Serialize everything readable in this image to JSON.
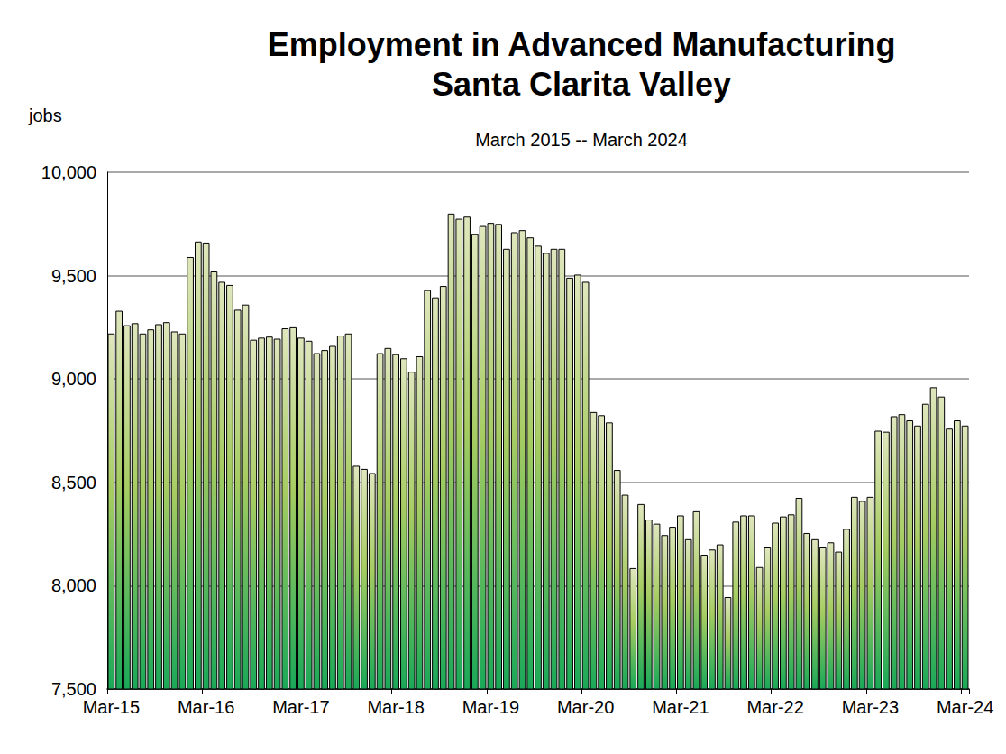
{
  "chart_data": {
    "type": "bar",
    "title": "Employment in Advanced Manufacturing\nSanta Clarita Valley",
    "subtitle": "March 2015 -- March 2024",
    "y_label": "jobs",
    "categories": [
      "Mar-15",
      null,
      null,
      null,
      null,
      null,
      null,
      null,
      null,
      null,
      null,
      null,
      "Mar-16",
      null,
      null,
      null,
      null,
      null,
      null,
      null,
      null,
      null,
      null,
      null,
      "Mar-17",
      null,
      null,
      null,
      null,
      null,
      null,
      null,
      null,
      null,
      null,
      null,
      "Mar-18",
      null,
      null,
      null,
      null,
      null,
      null,
      null,
      null,
      null,
      null,
      null,
      "Mar-19",
      null,
      null,
      null,
      null,
      null,
      null,
      null,
      null,
      null,
      null,
      null,
      "Mar-20",
      null,
      null,
      null,
      null,
      null,
      null,
      null,
      null,
      null,
      null,
      null,
      "Mar-21",
      null,
      null,
      null,
      null,
      null,
      null,
      null,
      null,
      null,
      null,
      null,
      "Mar-22",
      null,
      null,
      null,
      null,
      null,
      null,
      null,
      null,
      null,
      null,
      null,
      "Mar-23",
      null,
      null,
      null,
      null,
      null,
      null,
      null,
      null,
      null,
      null,
      null,
      "Mar-24"
    ],
    "values": [
      9220,
      9330,
      9260,
      9270,
      9220,
      9240,
      9265,
      9275,
      9230,
      9220,
      9590,
      9665,
      9660,
      9520,
      9470,
      9455,
      9335,
      9360,
      9190,
      9200,
      9205,
      9195,
      9245,
      9250,
      9200,
      9185,
      9125,
      9140,
      9160,
      9210,
      9220,
      8580,
      8565,
      8545,
      9125,
      9150,
      9120,
      9100,
      9035,
      9110,
      9430,
      9395,
      9450,
      9800,
      9775,
      9785,
      9700,
      9740,
      9755,
      9750,
      9630,
      9710,
      9720,
      9685,
      9645,
      9610,
      9630,
      9630,
      9490,
      9505,
      9470,
      8840,
      8825,
      8790,
      8560,
      8440,
      8085,
      8395,
      8320,
      8300,
      8245,
      8285,
      8340,
      8225,
      8360,
      8150,
      8175,
      8200,
      7945,
      8310,
      8340,
      8340,
      8090,
      8185,
      8305,
      8335,
      8345,
      8425,
      8255,
      8225,
      8185,
      8210,
      8165,
      8275,
      8430,
      8410,
      8430,
      8750,
      8745,
      8820,
      8830,
      8800,
      8775,
      8880,
      8960,
      8915,
      8760,
      8800,
      8775
    ],
    "color": "#1aa858",
    "ylim": [
      7500,
      10000
    ],
    "yticks": [
      {
        "value": 7500,
        "label": "7,500"
      },
      {
        "value": 8000,
        "label": "8,000"
      },
      {
        "value": 8500,
        "label": "8,500"
      },
      {
        "value": 9000,
        "label": "9,000"
      },
      {
        "value": 9500,
        "label": "9,500"
      },
      {
        "value": 10000,
        "label": "10,000"
      }
    ],
    "grid": true
  }
}
